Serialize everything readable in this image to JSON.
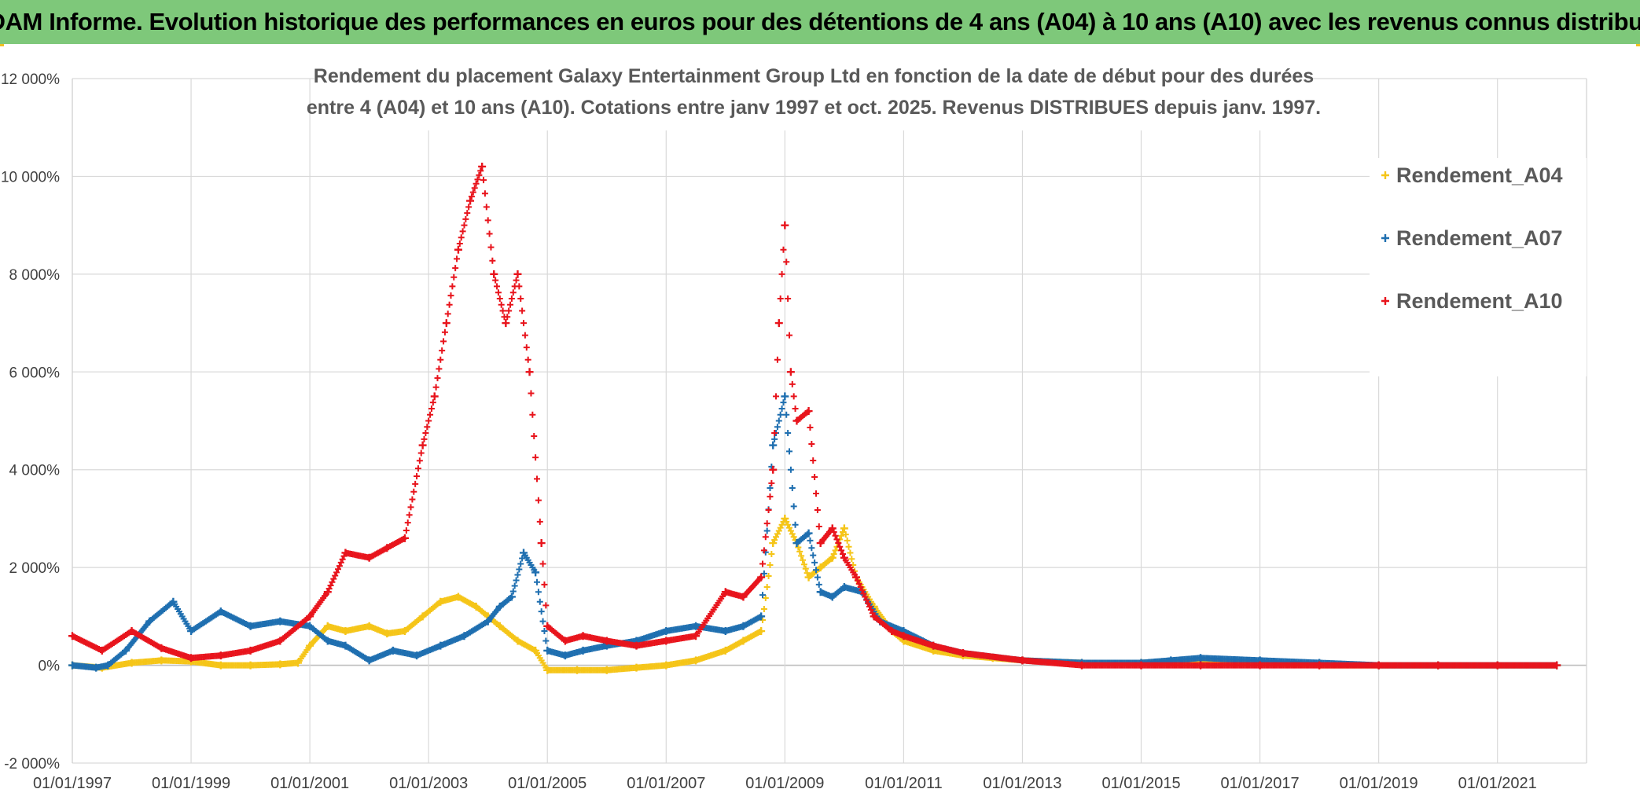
{
  "header": {
    "banner": "ADAM Informe. Evolution historique des performances en euros pour des détentions de 4 ans (A04) à 10 ans (A10) avec les revenus connus distribués"
  },
  "colors": {
    "banner_bg": "#7ec87a",
    "A04": "#f5c518",
    "A07": "#1f6fb0",
    "A10": "#e8141c",
    "grid": "#d9d9d9",
    "axis_text": "#404040",
    "title_text": "#595959"
  },
  "chart_data": {
    "type": "scatter",
    "title_line1": "Rendement du placement Galaxy Entertainment Group Ltd en fonction de la date de début pour des durées",
    "title_line2": "entre 4 (A04) et 10 ans (A10). Cotations entre janv 1997 et oct. 2025. Revenus DISTRIBUES depuis janv. 1997.",
    "xlabel": "",
    "ylabel": "",
    "xlim": [
      1997.0,
      2022.5
    ],
    "ylim": [
      -2000,
      12000
    ],
    "x_ticks": [
      1997,
      1999,
      2001,
      2003,
      2005,
      2007,
      2009,
      2011,
      2013,
      2015,
      2017,
      2019,
      2021
    ],
    "x_tick_labels": [
      "01/01/1997",
      "01/01/1999",
      "01/01/2001",
      "01/01/2003",
      "01/01/2005",
      "01/01/2007",
      "01/01/2009",
      "01/01/2011",
      "01/01/2013",
      "01/01/2015",
      "01/01/2017",
      "01/01/2019",
      "01/01/2021"
    ],
    "y_ticks": [
      -2000,
      0,
      2000,
      4000,
      6000,
      8000,
      10000,
      12000
    ],
    "y_tick_labels": [
      "-2 000%",
      "0%",
      "2 000%",
      "4 000%",
      "6 000%",
      "8 000%",
      "10 000%",
      "12 000%"
    ],
    "grid": true,
    "legend_position": "top-right",
    "marker": "+",
    "series": [
      {
        "name": "Rendement_A04",
        "x": [
          1997.0,
          1997.5,
          1998.0,
          1998.5,
          1999.0,
          1999.5,
          2000.0,
          2000.5,
          2000.8,
          2001.0,
          2001.3,
          2001.6,
          2002.0,
          2002.3,
          2002.6,
          2002.9,
          2003.2,
          2003.5,
          2003.8,
          2004.0,
          2004.2,
          2004.5,
          2004.8,
          2005.0,
          2005.5,
          2006.0,
          2006.5,
          2007.0,
          2007.5,
          2008.0,
          2008.3,
          2008.6,
          2008.8,
          2009.0,
          2009.2,
          2009.4,
          2009.6,
          2009.8,
          2010.0,
          2010.2,
          2010.5,
          2010.8,
          2011.0,
          2011.5,
          2012.0,
          2012.5,
          2013.0,
          2014.0,
          2015.0,
          2016.0,
          2017.0,
          2018.0,
          2019.0,
          2020.0,
          2021.0,
          2022.0
        ],
        "values": [
          0,
          -50,
          50,
          100,
          80,
          0,
          0,
          20,
          50,
          400,
          800,
          700,
          800,
          650,
          700,
          1000,
          1300,
          1400,
          1200,
          1000,
          800,
          500,
          300,
          -100,
          -100,
          -100,
          -50,
          0,
          100,
          300,
          500,
          700,
          2500,
          3000,
          2500,
          1800,
          2000,
          2200,
          2800,
          1800,
          1200,
          700,
          500,
          300,
          200,
          150,
          100,
          50,
          50,
          100,
          50,
          0,
          0,
          0,
          0,
          0
        ]
      },
      {
        "name": "Rendement_A07",
        "x": [
          1997.0,
          1997.4,
          1997.6,
          1997.9,
          1998.3,
          1998.7,
          1999.0,
          1999.5,
          2000.0,
          2000.5,
          2001.0,
          2001.3,
          2001.6,
          2002.0,
          2002.4,
          2002.8,
          2003.2,
          2003.6,
          2004.0,
          2004.2,
          2004.4,
          2004.6,
          2004.8,
          2005.0,
          2005.3,
          2005.6,
          2006.0,
          2006.5,
          2007.0,
          2007.5,
          2008.0,
          2008.3,
          2008.6,
          2008.8,
          2009.0,
          2009.2,
          2009.4,
          2009.6,
          2009.8,
          2010.0,
          2010.3,
          2010.6,
          2011.0,
          2011.5,
          2012.0,
          2013.0,
          2014.0,
          2015.0,
          2015.5,
          2016.0,
          2017.0,
          2018.0,
          2019.0,
          2020.0,
          2021.0,
          2022.0
        ],
        "values": [
          0,
          -50,
          0,
          300,
          900,
          1300,
          700,
          1100,
          800,
          900,
          800,
          500,
          400,
          100,
          300,
          200,
          400,
          600,
          900,
          1200,
          1400,
          2300,
          1900,
          300,
          200,
          300,
          400,
          500,
          700,
          800,
          700,
          800,
          1000,
          4500,
          5500,
          2500,
          2700,
          1500,
          1400,
          1600,
          1500,
          900,
          700,
          400,
          250,
          100,
          50,
          50,
          100,
          150,
          100,
          50,
          0,
          0,
          0,
          0
        ]
      },
      {
        "name": "Rendement_A10",
        "x": [
          1997.0,
          1997.5,
          1998.0,
          1998.5,
          1999.0,
          1999.5,
          2000.0,
          2000.5,
          2001.0,
          2001.3,
          2001.6,
          2002.0,
          2002.3,
          2002.6,
          2002.9,
          2003.1,
          2003.3,
          2003.5,
          2003.7,
          2003.9,
          2004.1,
          2004.3,
          2004.5,
          2004.7,
          2004.9,
          2005.0,
          2005.3,
          2005.6,
          2006.0,
          2006.5,
          2007.0,
          2007.5,
          2008.0,
          2008.3,
          2008.6,
          2008.8,
          2008.9,
          2009.0,
          2009.1,
          2009.2,
          2009.4,
          2009.6,
          2009.8,
          2010.0,
          2010.2,
          2010.5,
          2010.8,
          2011.0,
          2011.5,
          2012.0,
          2013.0,
          2014.0,
          2015.0,
          2016.0,
          2017.0,
          2018.0,
          2019.0,
          2020.0,
          2021.0,
          2022.0
        ],
        "values": [
          600,
          300,
          700,
          350,
          150,
          200,
          300,
          500,
          1000,
          1500,
          2300,
          2200,
          2400,
          2600,
          4500,
          5500,
          7000,
          8500,
          9500,
          10200,
          8000,
          7000,
          8000,
          6000,
          2500,
          800,
          500,
          600,
          500,
          400,
          500,
          600,
          1500,
          1400,
          1800,
          4000,
          7000,
          9000,
          6000,
          5000,
          5200,
          2500,
          2800,
          2200,
          1800,
          1000,
          700,
          600,
          400,
          250,
          100,
          0,
          0,
          0,
          0,
          0,
          0,
          0,
          0,
          0
        ]
      }
    ]
  }
}
